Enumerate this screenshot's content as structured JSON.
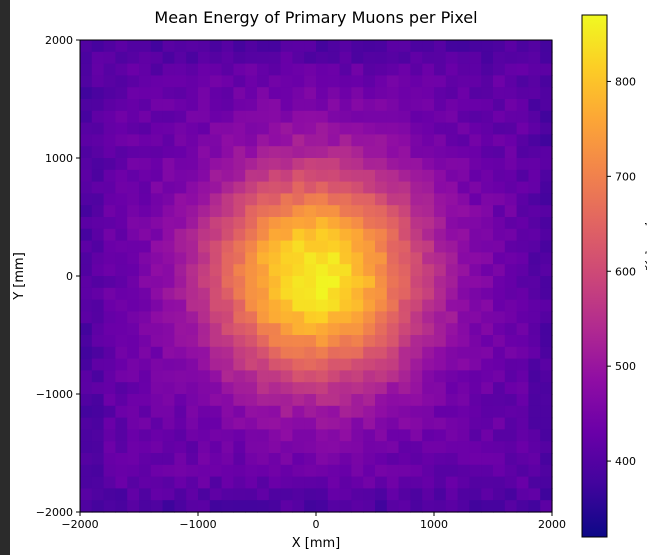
{
  "chart_data": {
    "type": "heatmap",
    "title": "Mean Energy of Primary Muons per Pixel",
    "xlabel": "X [mm]",
    "ylabel": "Y [mm]",
    "xlim": [
      -2000,
      2000
    ],
    "ylim": [
      -2000,
      2000
    ],
    "x_ticks": [
      -2000,
      -1000,
      0,
      1000,
      2000
    ],
    "y_ticks": [
      -2000,
      -1000,
      0,
      1000,
      2000
    ],
    "x_tick_labels": [
      "−2000",
      "−1000",
      "0",
      "1000",
      "2000"
    ],
    "y_tick_labels": [
      "−2000",
      "−1000",
      "0",
      "1000",
      "2000"
    ],
    "bins": 40,
    "colormap": "plasma",
    "center": [
      0,
      0
    ],
    "peak_value": 860,
    "edge_value": 420,
    "colorbar": {
      "label": "Mean Energy [MeV]",
      "range": [
        320,
        870
      ],
      "ticks": [
        400,
        500,
        600,
        700,
        800
      ],
      "tick_labels": [
        "400",
        "500",
        "600",
        "700",
        "800"
      ]
    },
    "grid": false
  }
}
